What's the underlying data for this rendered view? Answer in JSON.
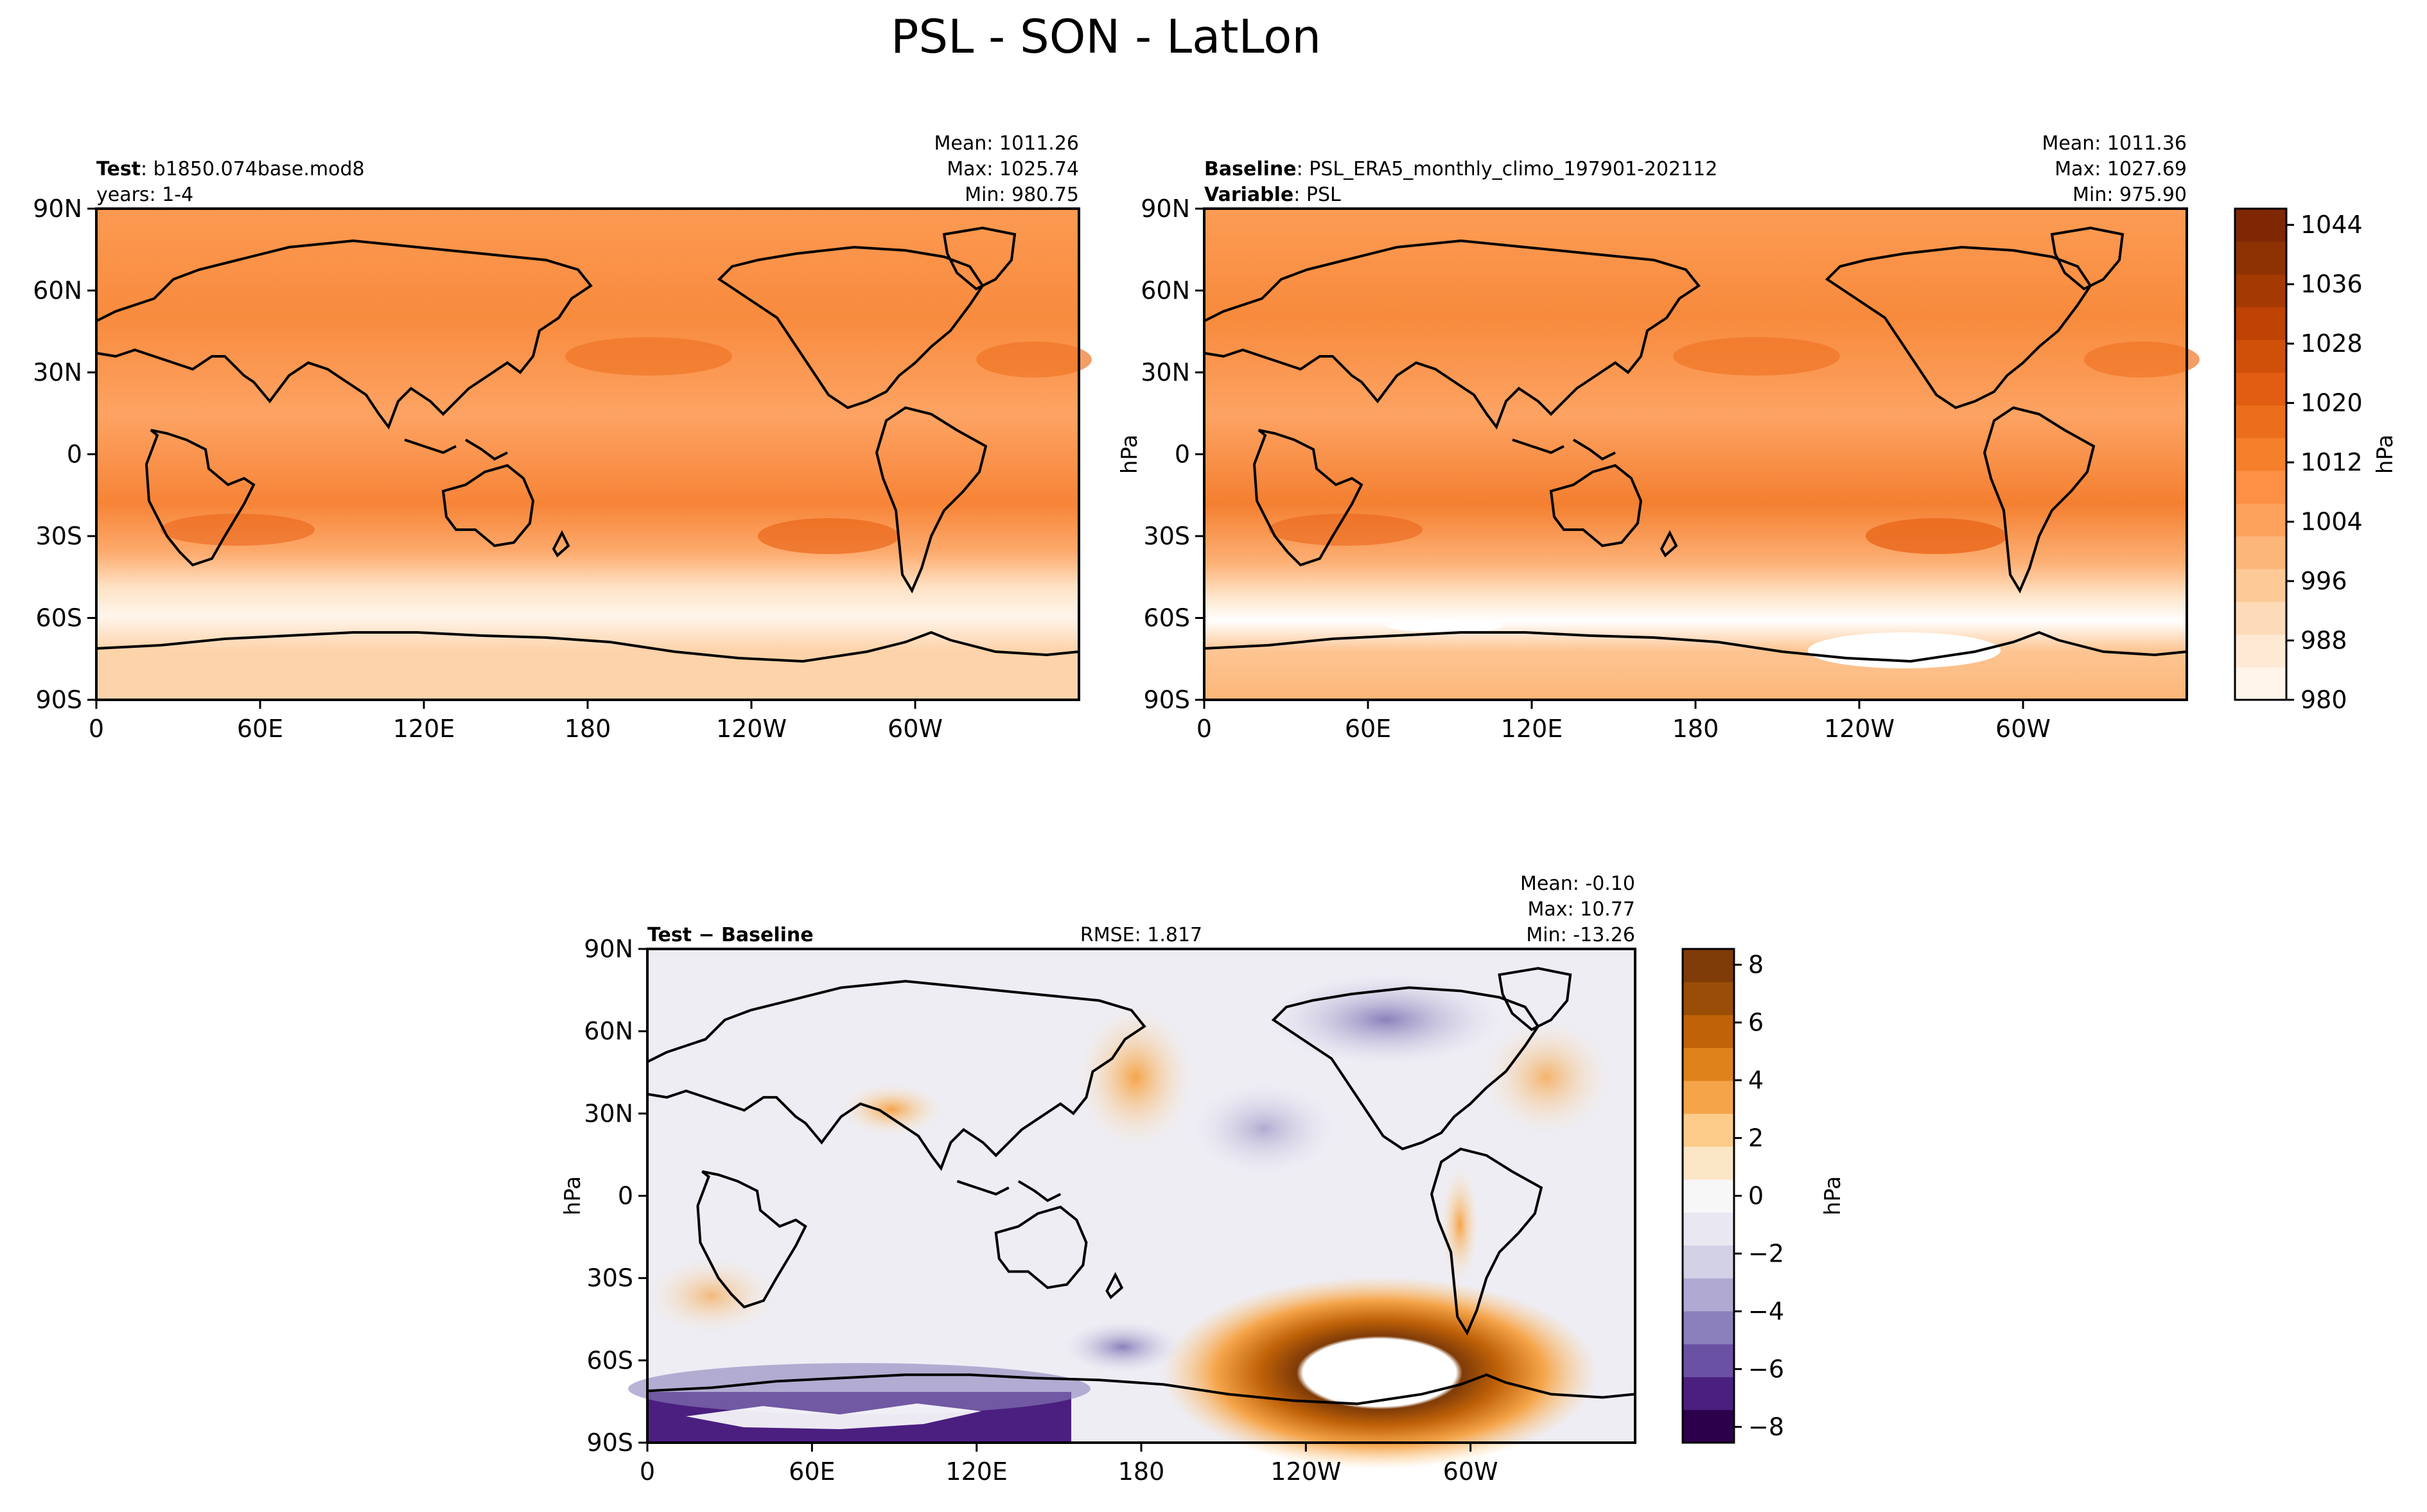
{
  "figure": {
    "title": "PSL - SON - LatLon"
  },
  "axes_common": {
    "lat_ticks": [
      "90N",
      "60N",
      "30N",
      "0",
      "30S",
      "60S",
      "90S"
    ],
    "lon_ticks": [
      "0",
      "60E",
      "120E",
      "180",
      "120W",
      "60W"
    ]
  },
  "panels": [
    {
      "id": "test",
      "lines": [
        {
          "bold": "Test",
          "text": ": b1850.074base.mod8"
        },
        {
          "bold": "",
          "text": "years: 1-4"
        }
      ],
      "stats": [
        "Mean: 1011.26",
        "Max: 1025.74",
        "Min: 980.75"
      ],
      "ylabel": ""
    },
    {
      "id": "baseline",
      "lines": [
        {
          "bold": "Baseline",
          "text": ": PSL_ERA5_monthly_climo_197901-202112"
        },
        {
          "bold": "Variable",
          "text": ": PSL"
        }
      ],
      "stats": [
        "Mean: 1011.36",
        "Max: 1027.69",
        "Min: 975.90"
      ],
      "ylabel": "hPa"
    },
    {
      "id": "diff",
      "lines": [
        {
          "bold": "Test − Baseline",
          "text": ""
        }
      ],
      "center": "RMSE: 1.817",
      "stats": [
        "Mean: -0.10",
        "Max: 10.77",
        "Min: -13.26"
      ],
      "ylabel": "hPa"
    }
  ],
  "colorbars": [
    {
      "id": "abs",
      "label": "hPa",
      "ticks": [
        "1044",
        "1036",
        "1028",
        "1020",
        "1012",
        "1004",
        "996",
        "988",
        "980"
      ],
      "colors_bottom_to_top": [
        "#fff5eb",
        "#fee9d5",
        "#fddbb8",
        "#fdc997",
        "#fdb679",
        "#fda25d",
        "#fd9044",
        "#f67f2c",
        "#ec6d1c",
        "#e05d11",
        "#d0500a",
        "#bd4203",
        "#a43903",
        "#8f3203",
        "#7f2704"
      ]
    },
    {
      "id": "diff",
      "label": "hPa",
      "ticks": [
        "8",
        "6",
        "4",
        "2",
        "0",
        "−2",
        "−4",
        "−6",
        "−8"
      ],
      "colors_bottom_to_top": [
        "#2d004b",
        "#4b1f80",
        "#6a51a3",
        "#8b80bb",
        "#b0aad2",
        "#d2d1e6",
        "#e9e8f2",
        "#f7f7f7",
        "#fbe6c6",
        "#fdcc8a",
        "#f5a44a",
        "#e0821a",
        "#c06208",
        "#9a4d06",
        "#7f3b08"
      ]
    }
  ]
}
